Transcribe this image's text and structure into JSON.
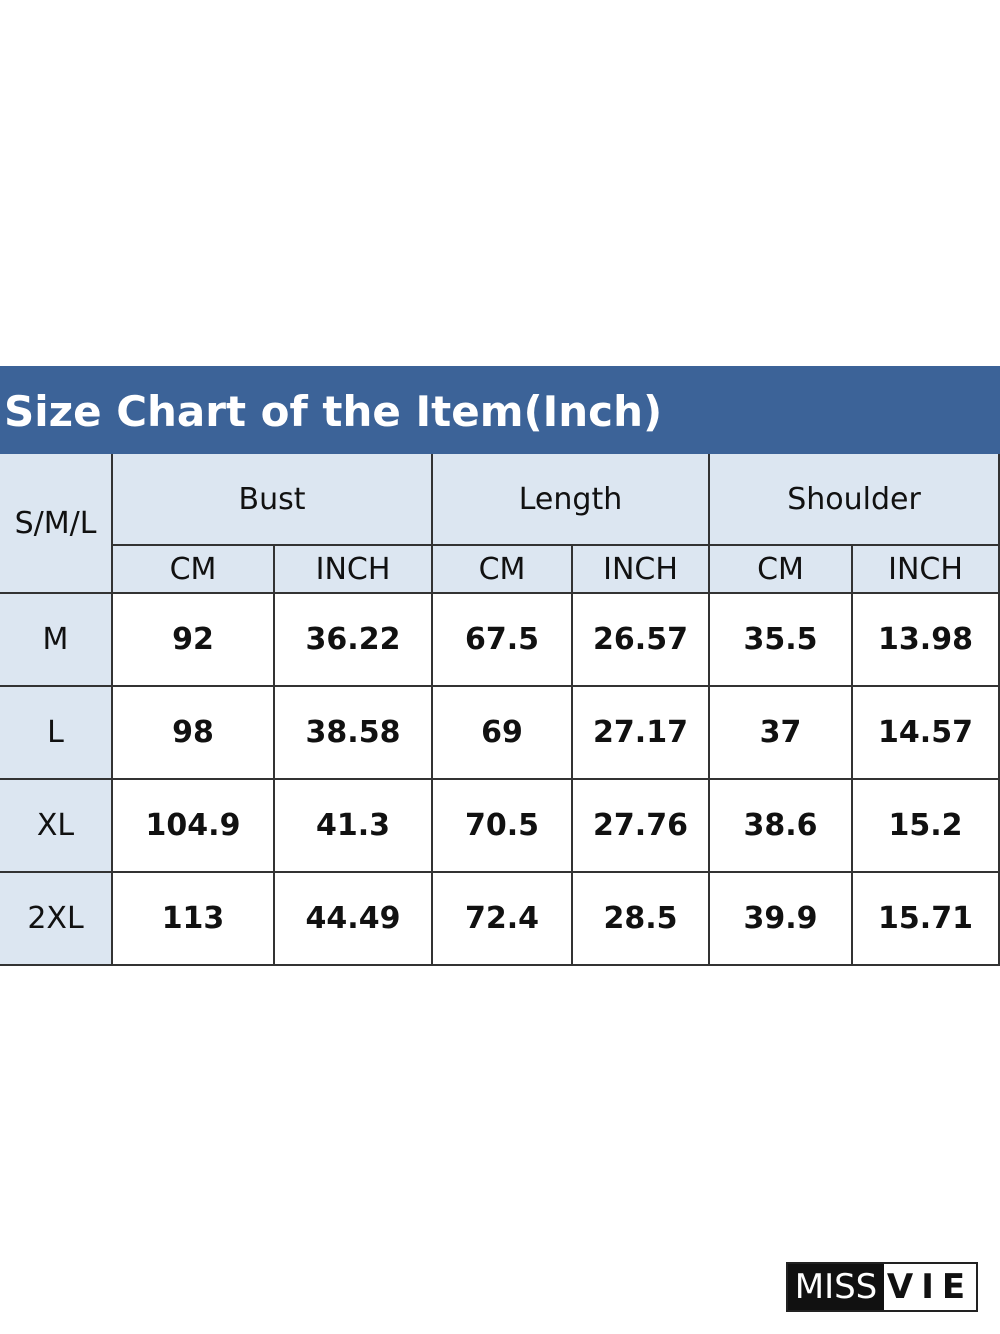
{
  "header": {
    "title": "Size Chart of the Item(Inch)"
  },
  "table": {
    "corner": "S/M/L",
    "groups": [
      "Bust",
      "Length",
      "Shoulder"
    ],
    "units": [
      "CM",
      "INCH",
      "CM",
      "INCH",
      "CM",
      "INCH"
    ],
    "rows": [
      [
        "M",
        "92",
        "36.22",
        "67.5",
        "26.57",
        "35.5",
        "13.98"
      ],
      [
        "L",
        "98",
        "38.58",
        "69",
        "27.17",
        "37",
        "14.57"
      ],
      [
        "XL",
        "104.9",
        "41.3",
        "70.5",
        "27.76",
        "38.6",
        "15.2"
      ],
      [
        "2XL",
        "113",
        "44.49",
        "72.4",
        "28.5",
        "39.9",
        "15.71"
      ]
    ]
  },
  "logo": {
    "left": "MISS",
    "right": "VIE"
  }
}
